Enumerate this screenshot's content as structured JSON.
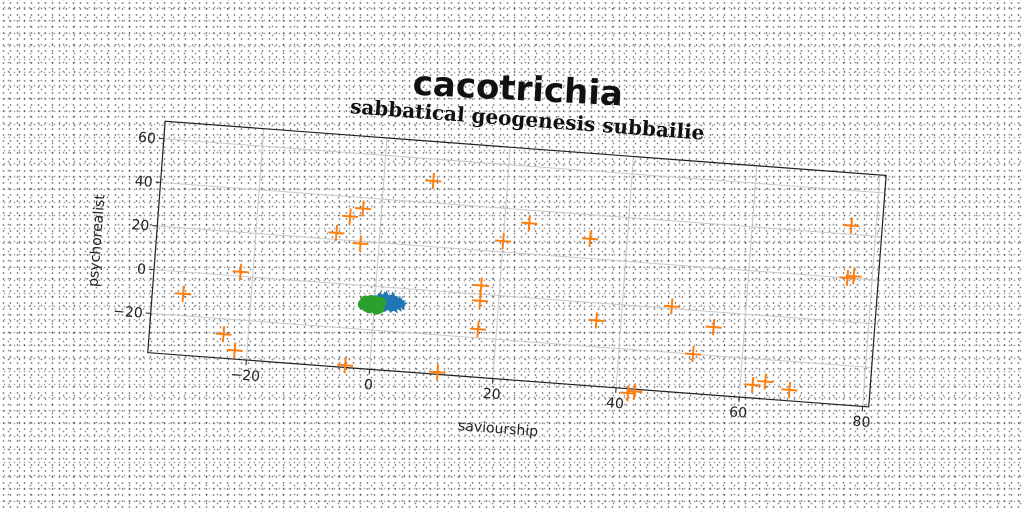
{
  "chart_data": {
    "type": "scatter",
    "title": "cacotrichia",
    "subtitle": "sabbatical geogenesis subbailie",
    "xlabel": "saviourship",
    "ylabel": "psychorealist",
    "xlim": [
      -36,
      81
    ],
    "ylim": [
      -38,
      68
    ],
    "xticks": [
      -20,
      0,
      20,
      40,
      60,
      80
    ],
    "yticks": [
      -20,
      0,
      20,
      40,
      60
    ],
    "grid": true,
    "legend": "none",
    "series": [
      {
        "marker": "star",
        "color": "#1f77b4",
        "points": [
          [
            1,
            -6
          ],
          [
            2,
            -7
          ],
          [
            3,
            -8
          ],
          [
            1.5,
            -5
          ],
          [
            2.5,
            -6.5
          ],
          [
            3.5,
            -7
          ],
          [
            2,
            -8.5
          ],
          [
            1,
            -7.5
          ],
          [
            3,
            -5.5
          ],
          [
            4,
            -6.5
          ],
          [
            2.2,
            -9
          ],
          [
            1.8,
            -4.5
          ],
          [
            0.5,
            -6
          ],
          [
            3.8,
            -8.2
          ],
          [
            2.8,
            -4.8
          ],
          [
            1.2,
            -8.8
          ],
          [
            4.3,
            -7.4
          ],
          [
            0.8,
            -5.2
          ],
          [
            2.4,
            -7.2
          ],
          [
            3.2,
            -9.1
          ]
        ]
      },
      {
        "marker": "circle",
        "color": "#2ca02c",
        "points": [
          [
            -1,
            -8
          ],
          [
            -0.5,
            -9
          ],
          [
            0,
            -7.5
          ],
          [
            -1.5,
            -7
          ],
          [
            0.5,
            -8.5
          ],
          [
            -0.8,
            -10
          ],
          [
            0.2,
            -6.8
          ],
          [
            -1.2,
            -9.5
          ],
          [
            0.8,
            -9.8
          ],
          [
            -0.3,
            -8.2
          ],
          [
            1,
            -7.2
          ],
          [
            -1.8,
            -8.6
          ],
          [
            0.4,
            -10.4
          ],
          [
            -0.6,
            -6.6
          ]
        ]
      },
      {
        "marker": "plus",
        "color": "#ff7f0e",
        "points": [
          [
            -31,
            -10
          ],
          [
            -22,
            2
          ],
          [
            -24,
            -27
          ],
          [
            -22,
            -34
          ],
          [
            -7,
            23
          ],
          [
            -5,
            31
          ],
          [
            -3,
            35
          ],
          [
            -3,
            19
          ],
          [
            -4,
            -37
          ],
          [
            8,
            50
          ],
          [
            11,
            -37
          ],
          [
            17,
            4
          ],
          [
            17,
            -3
          ],
          [
            17,
            -16
          ],
          [
            20,
            25
          ],
          [
            24,
            34
          ],
          [
            34,
            29
          ],
          [
            36,
            -8
          ],
          [
            42,
            -40
          ],
          [
            43,
            -39
          ],
          [
            48,
            1
          ],
          [
            52,
            -20
          ],
          [
            55,
            -7
          ],
          [
            62,
            -32
          ],
          [
            64,
            -30
          ],
          [
            68,
            -33
          ],
          [
            76,
            44
          ],
          [
            76,
            20
          ],
          [
            77,
            21
          ]
        ]
      }
    ]
  }
}
